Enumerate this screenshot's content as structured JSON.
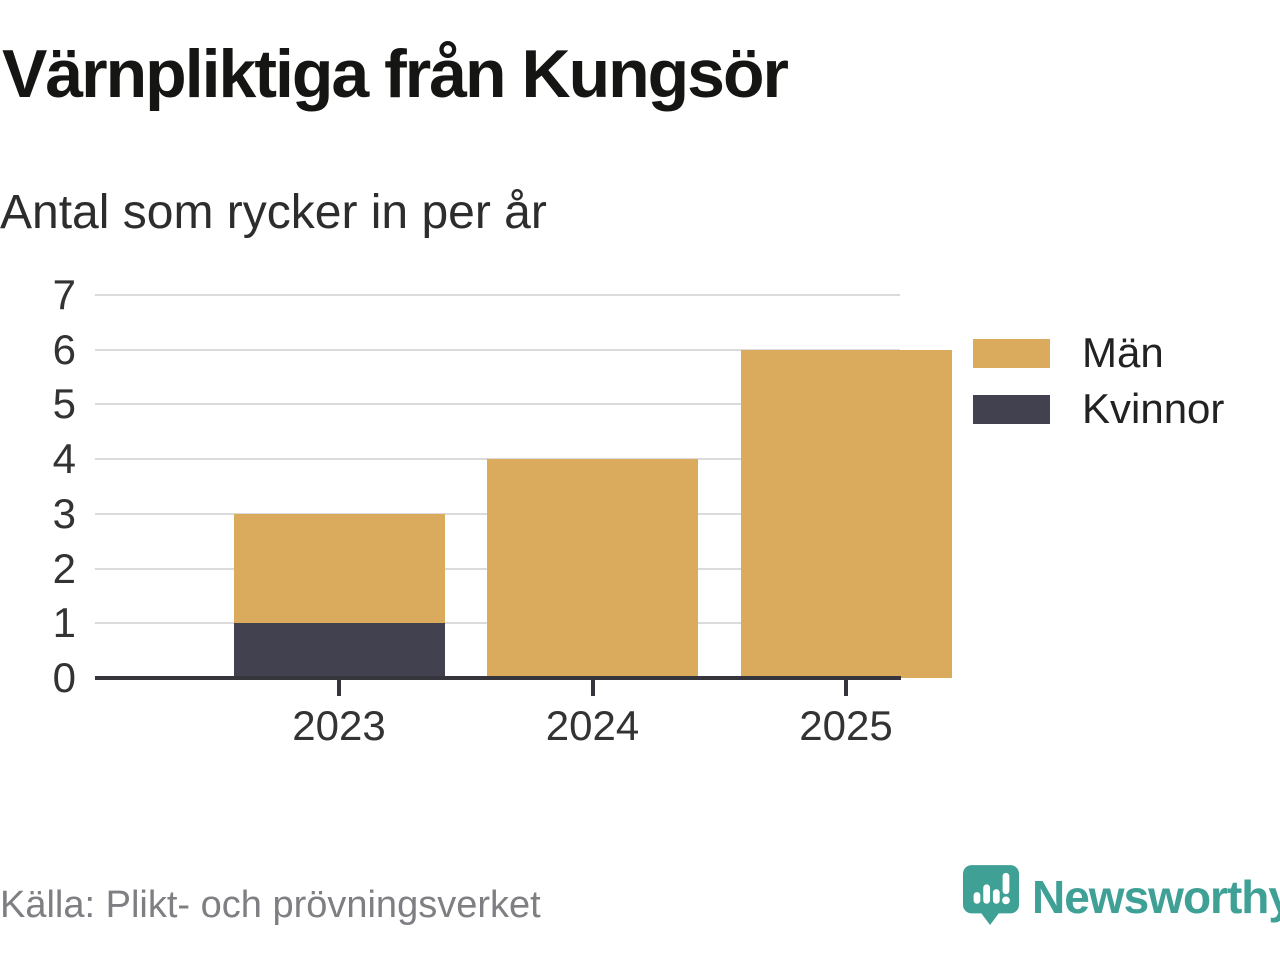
{
  "header": {
    "title": "Värnpliktiga från Kungsör",
    "subtitle": "Antal som rycker in per år"
  },
  "chart_data": {
    "type": "bar",
    "stacked": true,
    "title": "Värnpliktiga från Kungsör",
    "subtitle": "Antal som rycker in per år",
    "categories": [
      "2023",
      "2024",
      "2025"
    ],
    "series": [
      {
        "name": "Män",
        "color": "#DAAB5C",
        "values": [
          2,
          4,
          6
        ]
      },
      {
        "name": "Kvinnor",
        "color": "#41414F",
        "values": [
          1,
          0,
          0
        ]
      }
    ],
    "stack_totals": [
      3,
      4,
      6
    ],
    "xlabel": "",
    "ylabel": "",
    "ylim": [
      0,
      7
    ],
    "yticks": [
      0,
      1,
      2,
      3,
      4,
      5,
      6,
      7
    ],
    "grid": "horizontal",
    "legend_position": "right"
  },
  "footer": {
    "source": "Källa: Plikt- och prövningsverket",
    "brand": "Newsworthy",
    "brand_color": "#3FA096",
    "logo_icon": "newsworthy-speech-bubble-bar-chart-icon"
  },
  "colors": {
    "men": "#DAAB5C",
    "women": "#41414F",
    "grid": "#DBDBDB",
    "axis": "#35353B",
    "tick_text": "#333333",
    "source_text": "#7E7E83",
    "background": "#FFFFFF"
  }
}
